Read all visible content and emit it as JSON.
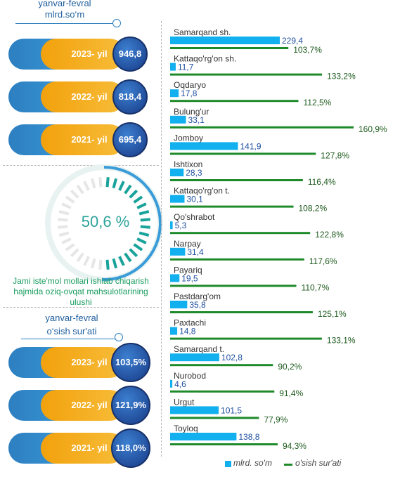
{
  "top_panel": {
    "period": "yanvar-fevral",
    "unit": "mlrd.so‘m",
    "pills": [
      {
        "year": "2023- yil",
        "value": "946,8"
      },
      {
        "year": "2022- yil",
        "value": "818,4"
      },
      {
        "year": "2021- yil",
        "value": "695,4"
      }
    ]
  },
  "share": {
    "value_text": "50,6 %",
    "value": 50.6,
    "caption": "Jami iste'mol mollari ishlab chiqarish hajmida oziq-ovqat mahsulotlarining ulushi"
  },
  "bottom_panel": {
    "period": "yanvar-fevral",
    "unit": "o‘sish sur'ati",
    "pills": [
      {
        "year": "2023- yil",
        "value": "103,5%"
      },
      {
        "year": "2022- yil",
        "value": "121,9%"
      },
      {
        "year": "2021- yil",
        "value": "118,0%"
      }
    ]
  },
  "colors": {
    "volume": "#12b0ee",
    "growth": "#1e8a2a",
    "ring": "#e8f3f1",
    "ring_accent": "#3a9bd9",
    "ticks": "#1aa39a"
  },
  "chart_data": {
    "type": "bar",
    "categories": [
      "Samarqand sh.",
      "Kattaqo'rg'on sh.",
      "Oqdaryo",
      "Bulung'ur",
      "Jomboy",
      "Ishtixon",
      "Kattaqo'rg'on t.",
      "Qo'shrabot",
      "Narpay",
      "Payariq",
      "Pastdarg'om",
      "Paxtachi",
      "Samarqand t.",
      "Nurobod",
      "Urgut",
      "Toyloq"
    ],
    "series": [
      {
        "name": "mlrd. so'm",
        "values": [
          229.4,
          11.7,
          17.8,
          33.1,
          141.9,
          28.3,
          30.1,
          5.3,
          31.4,
          19.5,
          35.8,
          14.8,
          102.8,
          4.6,
          101.5,
          138.8
        ],
        "labels": [
          "229,4",
          "11,7",
          "17,8",
          "33,1",
          "141,9",
          "28,3",
          "30,1",
          "5,3",
          "31,4",
          "19,5",
          "35,8",
          "14,8",
          "102,8",
          "4,6",
          "101,5",
          "138,8"
        ]
      },
      {
        "name": "o'sish sur'ati",
        "values": [
          103.7,
          133.2,
          112.5,
          160.9,
          127.8,
          116.4,
          108.2,
          122.8,
          117.6,
          110.7,
          125.1,
          133.1,
          90.2,
          91.4,
          77.9,
          94.3
        ],
        "labels": [
          "103,7%",
          "133,2%",
          "112,5%",
          "160,9%",
          "127,8%",
          "116,4%",
          "108,2%",
          "122,8%",
          "117,6%",
          "110,7%",
          "125,1%",
          "133,1%",
          "90,2%",
          "91,4%",
          "77,9%",
          "94,3%"
        ]
      }
    ],
    "legend_position": "bottom"
  }
}
